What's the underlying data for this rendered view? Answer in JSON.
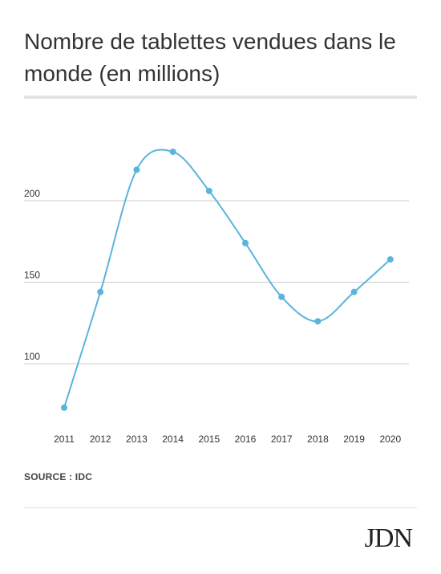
{
  "title": "Nombre de tablettes vendues dans le monde (en millions)",
  "source": "SOURCE : IDC",
  "logo": "JDN",
  "colors": {
    "line": "#5ab4dc",
    "grid": "#cccccc",
    "text": "#333333"
  },
  "chart_data": {
    "type": "line",
    "title": "Nombre de tablettes vendues dans le monde (en millions)",
    "xlabel": "",
    "ylabel": "",
    "categories": [
      "2011",
      "2012",
      "2013",
      "2014",
      "2015",
      "2016",
      "2017",
      "2018",
      "2019",
      "2020"
    ],
    "series": [
      {
        "values": [
          73,
          144,
          219,
          230,
          206,
          174,
          141,
          126,
          144,
          164
        ]
      }
    ],
    "yticks": [
      100,
      150,
      200
    ],
    "ylim": [
      70,
      235
    ],
    "grid": true,
    "legend": "none"
  }
}
